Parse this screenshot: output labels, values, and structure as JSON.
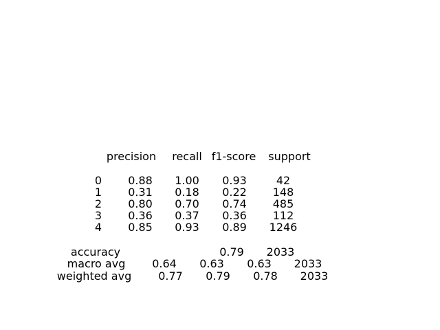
{
  "report": {
    "header": [
      "precision",
      "recall",
      "f1-score",
      "support"
    ],
    "class_rows": [
      {
        "label": "0",
        "precision": "0.88",
        "recall": "1.00",
        "f1": "0.93",
        "support": "42"
      },
      {
        "label": "1",
        "precision": "0.31",
        "recall": "0.18",
        "f1": "0.22",
        "support": "148"
      },
      {
        "label": "2",
        "precision": "0.80",
        "recall": "0.70",
        "f1": "0.74",
        "support": "485"
      },
      {
        "label": "3",
        "precision": "0.36",
        "recall": "0.37",
        "f1": "0.36",
        "support": "112"
      },
      {
        "label": "4",
        "precision": "0.85",
        "recall": "0.93",
        "f1": "0.89",
        "support": "1246"
      }
    ],
    "accuracy": {
      "label": "accuracy",
      "f1": "0.79",
      "support": "2033"
    },
    "macro_avg": {
      "label": "macro avg",
      "precision": "0.64",
      "recall": "0.63",
      "f1": "0.63",
      "support": "2033"
    },
    "weighted_avg": {
      "label": "weighted avg",
      "precision": "0.77",
      "recall": "0.79",
      "f1": "0.78",
      "support": "2033"
    }
  }
}
